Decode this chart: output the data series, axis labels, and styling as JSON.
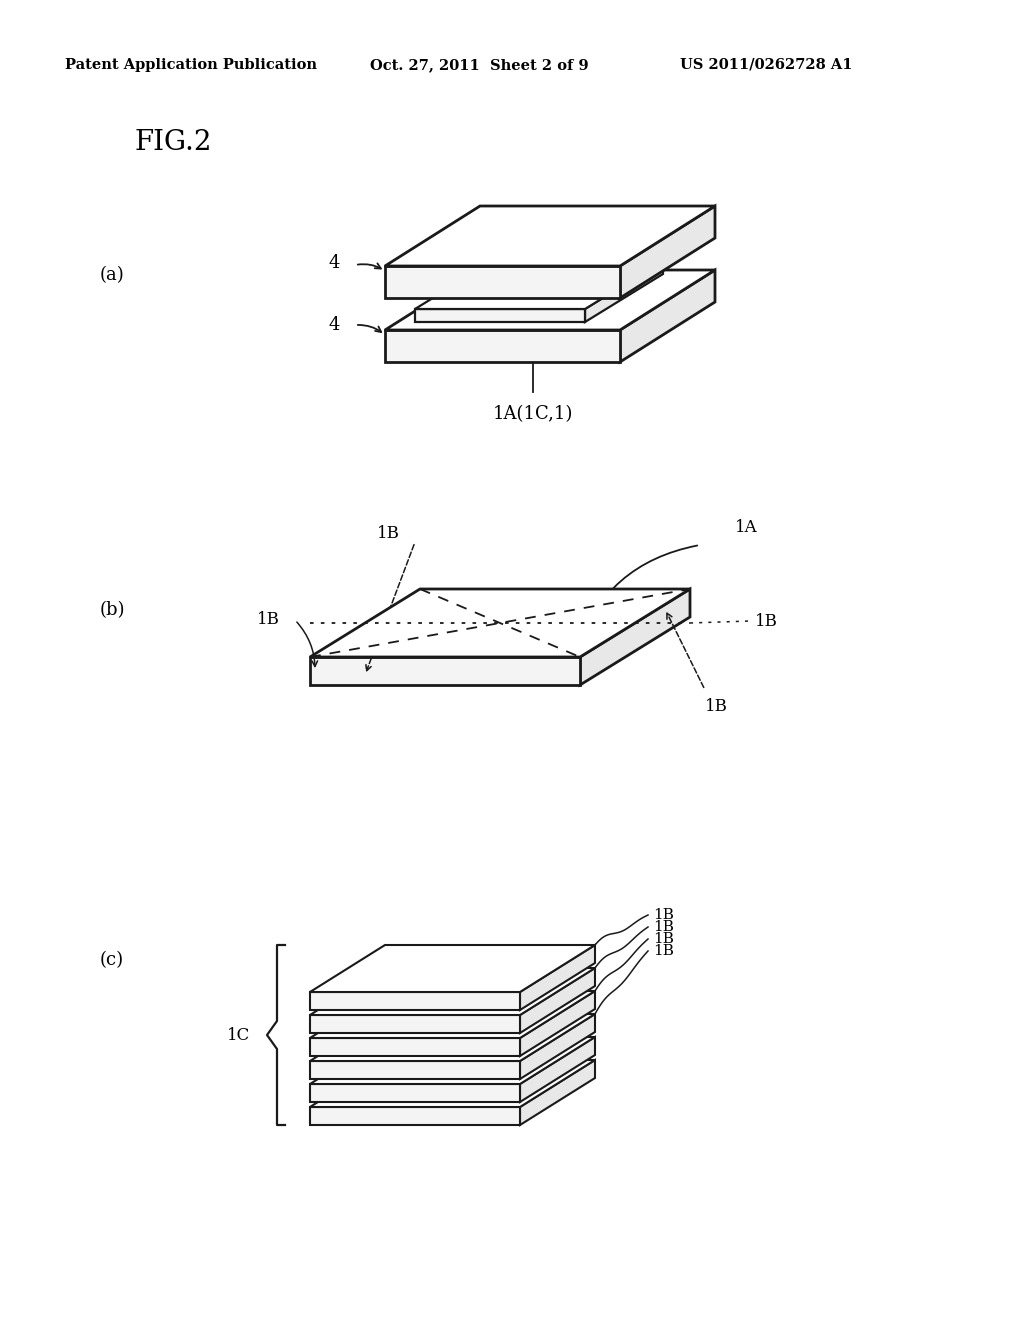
{
  "background_color": "#ffffff",
  "header_left": "Patent Application Publication",
  "header_mid": "Oct. 27, 2011  Sheet 2 of 9",
  "header_right": "US 2011/0262728 A1",
  "fig_label": "FIG.2",
  "section_a_label": "(a)",
  "section_b_label": "(b)",
  "section_c_label": "(c)",
  "line_color": "#1a1a1a",
  "face_white": "#ffffff",
  "face_side": "#e8e8e8",
  "face_front": "#f4f4f4",
  "header_fontsize": 10.5,
  "fig_fontsize": 20,
  "label_fontsize": 13,
  "annot_fontsize": 12
}
